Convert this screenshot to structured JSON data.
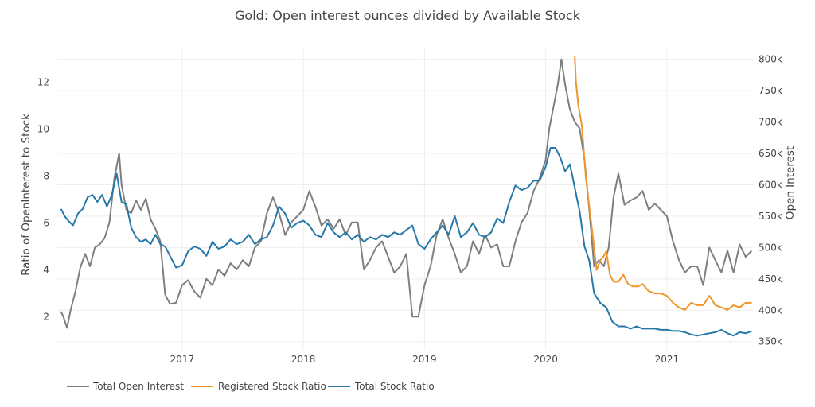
{
  "chart_data": {
    "type": "line",
    "title": "Gold: Open interest ounces divided by Available Stock",
    "xlabel": "",
    "ylabel": "Ratio of OpenInterest to Stock",
    "y2label": "Open Interest",
    "xlim": [
      2015.97,
      2021.71
    ],
    "ylim": [
      0.6,
      13.4
    ],
    "y2lim": [
      337,
      816
    ],
    "x_ticks": [
      2017,
      2018,
      2019,
      2020,
      2021
    ],
    "x_tick_labels": [
      "2017",
      "2018",
      "2019",
      "2020",
      "2021"
    ],
    "y_ticks": [
      2,
      4,
      6,
      8,
      10,
      12
    ],
    "y_tick_labels": [
      "2",
      "4",
      "6",
      "8",
      "10",
      "12"
    ],
    "y2_ticks": [
      350,
      400,
      450,
      500,
      550,
      600,
      650,
      700,
      750,
      800
    ],
    "y2_tick_labels": [
      "350k",
      "400k",
      "450k",
      "500k",
      "550k",
      "600k",
      "650k",
      "700k",
      "750k",
      "800k"
    ],
    "grid": true,
    "legend_position": "bottom",
    "colors": {
      "Total Open Interest": "#7f7f7f",
      "Registered Stock Ratio": "#f0962e",
      "Total Stock Ratio": "#2678a8"
    },
    "series": [
      {
        "name": "Total Open Interest",
        "axis": "right",
        "x": [
          2016.0,
          2016.02,
          2016.05,
          2016.08,
          2016.12,
          2016.16,
          2016.2,
          2016.24,
          2016.28,
          2016.32,
          2016.36,
          2016.4,
          2016.44,
          2016.48,
          2016.5,
          2016.54,
          2016.58,
          2016.62,
          2016.66,
          2016.7,
          2016.74,
          2016.78,
          2016.82,
          2016.86,
          2016.9,
          2016.95,
          2017.0,
          2017.05,
          2017.1,
          2017.15,
          2017.2,
          2017.25,
          2017.3,
          2017.35,
          2017.4,
          2017.45,
          2017.5,
          2017.55,
          2017.6,
          2017.65,
          2017.7,
          2017.75,
          2017.8,
          2017.85,
          2017.9,
          2017.95,
          2018.0,
          2018.05,
          2018.1,
          2018.15,
          2018.2,
          2018.25,
          2018.3,
          2018.35,
          2018.4,
          2018.45,
          2018.5,
          2018.55,
          2018.6,
          2018.65,
          2018.7,
          2018.75,
          2018.8,
          2018.85,
          2018.9,
          2018.95,
          2019.0,
          2019.05,
          2019.1,
          2019.15,
          2019.2,
          2019.25,
          2019.3,
          2019.35,
          2019.4,
          2019.45,
          2019.5,
          2019.55,
          2019.6,
          2019.65,
          2019.7,
          2019.75,
          2019.8,
          2019.85,
          2019.9,
          2019.95,
          2020.0,
          2020.03,
          2020.06,
          2020.1,
          2020.13,
          2020.16,
          2020.2,
          2020.24,
          2020.28,
          2020.32,
          2020.36,
          2020.4,
          2020.44,
          2020.48,
          2020.52,
          2020.56,
          2020.6,
          2020.65,
          2020.7,
          2020.75,
          2020.8,
          2020.85,
          2020.9,
          2020.95,
          2021.0,
          2021.05,
          2021.1,
          2021.15,
          2021.2,
          2021.25,
          2021.3,
          2021.35,
          2021.4,
          2021.45,
          2021.5,
          2021.55,
          2021.6,
          2021.65,
          2021.7
        ],
        "values": [
          398,
          390,
          372,
          400,
          430,
          468,
          490,
          470,
          500,
          505,
          515,
          540,
          610,
          650,
          600,
          560,
          555,
          575,
          560,
          578,
          545,
          530,
          510,
          425,
          410,
          412,
          440,
          448,
          430,
          420,
          450,
          440,
          465,
          455,
          475,
          465,
          480,
          470,
          500,
          510,
          555,
          580,
          555,
          520,
          540,
          550,
          560,
          590,
          565,
          535,
          545,
          530,
          545,
          520,
          540,
          540,
          465,
          480,
          500,
          510,
          485,
          460,
          470,
          490,
          390,
          390,
          440,
          470,
          520,
          545,
          515,
          490,
          460,
          470,
          510,
          490,
          520,
          500,
          505,
          470,
          470,
          510,
          540,
          555,
          590,
          610,
          640,
          690,
          720,
          760,
          800,
          760,
          720,
          700,
          690,
          640,
          560,
          470,
          480,
          470,
          500,
          580,
          618,
          568,
          575,
          580,
          590,
          560,
          570,
          560,
          550,
          510,
          480,
          460,
          470,
          470,
          440,
          500,
          480,
          460,
          495,
          460,
          505,
          485,
          495
        ]
      },
      {
        "name": "Registered Stock Ratio",
        "axis": "left",
        "x": [
          2020.24,
          2020.25,
          2020.27,
          2020.3,
          2020.33,
          2020.36,
          2020.39,
          2020.42,
          2020.45,
          2020.48,
          2020.5,
          2020.53,
          2020.56,
          2020.6,
          2020.64,
          2020.68,
          2020.72,
          2020.76,
          2020.8,
          2020.85,
          2020.9,
          2020.95,
          2021.0,
          2021.05,
          2021.1,
          2021.15,
          2021.2,
          2021.25,
          2021.3,
          2021.35,
          2021.4,
          2021.45,
          2021.5,
          2021.55,
          2021.6,
          2021.65,
          2021.7
        ],
        "values": [
          13.1,
          12.0,
          11.0,
          10.1,
          8.0,
          6.7,
          5.4,
          4.0,
          4.4,
          4.6,
          4.8,
          3.8,
          3.5,
          3.5,
          3.8,
          3.4,
          3.3,
          3.3,
          3.4,
          3.1,
          3.0,
          3.0,
          2.9,
          2.6,
          2.4,
          2.3,
          2.6,
          2.5,
          2.5,
          2.9,
          2.5,
          2.4,
          2.3,
          2.5,
          2.4,
          2.6,
          2.6
        ]
      },
      {
        "name": "Total Stock Ratio",
        "axis": "left",
        "x": [
          2016.0,
          2016.03,
          2016.06,
          2016.1,
          2016.14,
          2016.18,
          2016.22,
          2016.26,
          2016.3,
          2016.34,
          2016.38,
          2016.42,
          2016.46,
          2016.5,
          2016.54,
          2016.58,
          2016.62,
          2016.66,
          2016.7,
          2016.74,
          2016.78,
          2016.82,
          2016.86,
          2016.9,
          2016.95,
          2017.0,
          2017.05,
          2017.1,
          2017.15,
          2017.2,
          2017.25,
          2017.3,
          2017.35,
          2017.4,
          2017.45,
          2017.5,
          2017.55,
          2017.6,
          2017.65,
          2017.7,
          2017.75,
          2017.8,
          2017.85,
          2017.9,
          2017.95,
          2018.0,
          2018.05,
          2018.1,
          2018.15,
          2018.2,
          2018.25,
          2018.3,
          2018.35,
          2018.4,
          2018.45,
          2018.5,
          2018.55,
          2018.6,
          2018.65,
          2018.7,
          2018.75,
          2018.8,
          2018.85,
          2018.9,
          2018.95,
          2019.0,
          2019.05,
          2019.1,
          2019.15,
          2019.2,
          2019.25,
          2019.3,
          2019.35,
          2019.4,
          2019.45,
          2019.5,
          2019.55,
          2019.6,
          2019.65,
          2019.7,
          2019.75,
          2019.8,
          2019.85,
          2019.9,
          2019.95,
          2020.0,
          2020.04,
          2020.08,
          2020.12,
          2020.16,
          2020.2,
          2020.24,
          2020.26,
          2020.28,
          2020.32,
          2020.36,
          2020.4,
          2020.45,
          2020.5,
          2020.55,
          2020.6,
          2020.65,
          2020.7,
          2020.75,
          2020.8,
          2020.85,
          2020.9,
          2020.95,
          2021.0,
          2021.05,
          2021.1,
          2021.15,
          2021.2,
          2021.25,
          2021.3,
          2021.35,
          2021.4,
          2021.45,
          2021.5,
          2021.55,
          2021.6,
          2021.65,
          2021.7
        ],
        "values": [
          6.6,
          6.3,
          6.1,
          5.9,
          6.4,
          6.6,
          7.1,
          7.2,
          6.9,
          7.2,
          6.7,
          7.2,
          8.1,
          6.9,
          6.8,
          5.8,
          5.4,
          5.2,
          5.3,
          5.1,
          5.5,
          5.1,
          5.0,
          4.6,
          4.1,
          4.2,
          4.8,
          5.0,
          4.9,
          4.6,
          5.2,
          4.9,
          5.0,
          5.3,
          5.1,
          5.2,
          5.5,
          5.1,
          5.3,
          5.4,
          5.9,
          6.7,
          6.4,
          5.8,
          6.0,
          6.1,
          5.9,
          5.5,
          5.4,
          6.0,
          5.6,
          5.4,
          5.6,
          5.3,
          5.5,
          5.2,
          5.4,
          5.3,
          5.5,
          5.4,
          5.6,
          5.5,
          5.7,
          5.9,
          5.1,
          4.9,
          5.3,
          5.6,
          5.9,
          5.5,
          6.3,
          5.4,
          5.6,
          6.0,
          5.5,
          5.4,
          5.6,
          6.2,
          6.0,
          6.9,
          7.6,
          7.4,
          7.5,
          7.8,
          7.8,
          8.4,
          9.2,
          9.2,
          8.8,
          8.2,
          8.5,
          7.5,
          7.0,
          6.5,
          5.0,
          4.4,
          3.0,
          2.6,
          2.4,
          1.8,
          1.6,
          1.6,
          1.5,
          1.6,
          1.5,
          1.5,
          1.5,
          1.45,
          1.45,
          1.4,
          1.4,
          1.35,
          1.25,
          1.2,
          1.25,
          1.3,
          1.35,
          1.45,
          1.3,
          1.2,
          1.35,
          1.3,
          1.4
        ]
      }
    ]
  }
}
